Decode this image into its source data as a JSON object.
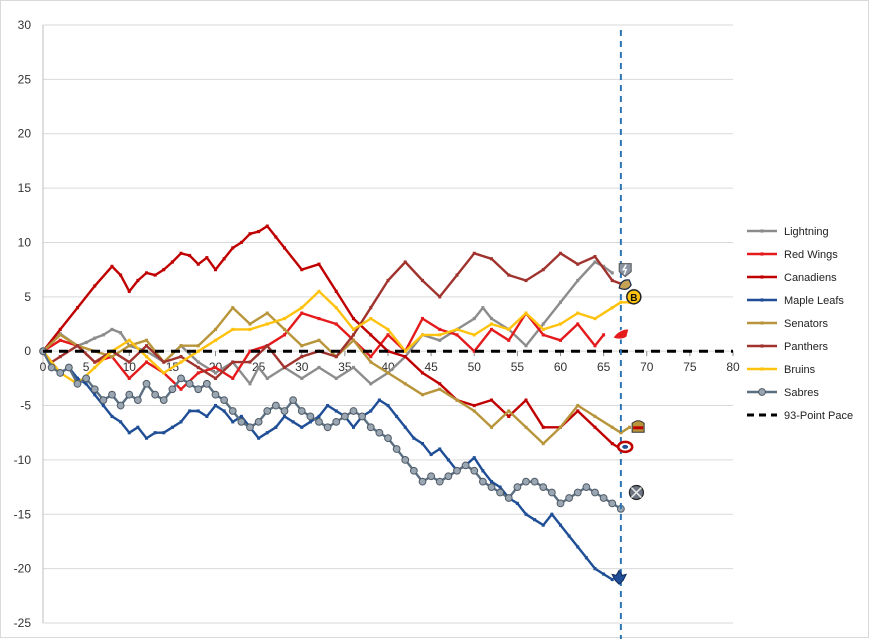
{
  "chart_data": {
    "type": "line",
    "title": "",
    "xlabel": "",
    "ylabel": "",
    "xlim": [
      0,
      80
    ],
    "ylim": [
      -25,
      30
    ],
    "xticks": [
      0,
      5,
      10,
      15,
      20,
      25,
      30,
      35,
      40,
      45,
      50,
      55,
      60,
      65,
      70,
      75,
      80
    ],
    "yticks": [
      30,
      25,
      20,
      15,
      10,
      5,
      0,
      -5,
      -10,
      -15,
      -20,
      -25
    ],
    "grid": "horizontal",
    "legend_position": "right",
    "current_game_marker_x": 67,
    "series": [
      {
        "name": "Lightning",
        "color": "#8c8c8c",
        "marker": "dash",
        "style": "solid",
        "x": [
          0,
          2,
          4,
          5,
          6,
          7,
          8,
          9,
          10,
          12,
          14,
          16,
          18,
          20,
          22,
          24,
          25,
          26,
          28,
          30,
          32,
          34,
          36,
          38,
          40,
          42,
          44,
          46,
          48,
          50,
          51,
          52,
          54,
          56,
          58,
          60,
          62,
          64,
          65,
          66
        ],
        "y": [
          0,
          1.6,
          0.5,
          0.8,
          1.2,
          1.5,
          2,
          1.7,
          0.5,
          0,
          -1,
          0.5,
          -1,
          -2,
          -1,
          -3,
          -1.5,
          -2.5,
          -1.5,
          -2.5,
          -1.5,
          -2.5,
          -1.5,
          -3,
          -2,
          -0.5,
          1.5,
          1,
          2,
          3,
          4,
          3,
          2,
          0.5,
          2.5,
          4.5,
          6.5,
          8.2,
          7.8,
          7.2
        ]
      },
      {
        "name": "Red Wings",
        "color": "#e41a1c",
        "marker": "dash",
        "style": "solid",
        "x": [
          0,
          2,
          4,
          6,
          8,
          10,
          12,
          14,
          16,
          18,
          20,
          22,
          24,
          26,
          28,
          30,
          32,
          34,
          36,
          38,
          40,
          42,
          44,
          46,
          48,
          50,
          52,
          54,
          56,
          58,
          60,
          62,
          64,
          65
        ],
        "y": [
          0,
          1,
          0.5,
          -1,
          -0.5,
          -2.5,
          -1,
          -2,
          -3.5,
          -2,
          -1.5,
          -2.5,
          0,
          0.5,
          1.5,
          3.5,
          3,
          2.5,
          1,
          -0.5,
          1.5,
          0,
          3,
          2,
          1.5,
          0,
          2,
          1,
          3.5,
          1.5,
          1,
          2.5,
          0.5,
          1.5
        ]
      },
      {
        "name": "Canadiens",
        "color": "#c00000",
        "marker": "dash",
        "style": "solid",
        "x": [
          0,
          2,
          4,
          6,
          8,
          9,
          10,
          11,
          12,
          13,
          14,
          15,
          16,
          17,
          18,
          19,
          20,
          21,
          22,
          23,
          24,
          25,
          26,
          27,
          28,
          30,
          32,
          34,
          36,
          38,
          40,
          42,
          44,
          46,
          48,
          50,
          52,
          54,
          56,
          58,
          60,
          62,
          64,
          66,
          67
        ],
        "y": [
          0,
          2,
          4,
          6,
          7.8,
          7,
          5.5,
          6.5,
          7.2,
          7,
          7.5,
          8.2,
          9,
          8.8,
          8,
          8.6,
          7.5,
          8.5,
          9.5,
          10,
          10.8,
          11,
          11.5,
          10.5,
          9.5,
          7.5,
          8,
          5.5,
          3,
          1.5,
          0,
          -0.5,
          -2,
          -3,
          -4.5,
          -5,
          -4.5,
          -6,
          -4.5,
          -7,
          -7,
          -5.5,
          -7,
          -8.5,
          -9
        ]
      },
      {
        "name": "Maple Leafs",
        "color": "#1f4e96",
        "marker": "dash",
        "style": "solid",
        "x": [
          0,
          1,
          2,
          3,
          4,
          5,
          6,
          7,
          8,
          9,
          10,
          11,
          12,
          13,
          14,
          15,
          16,
          17,
          18,
          19,
          20,
          21,
          22,
          23,
          24,
          25,
          26,
          27,
          28,
          29,
          30,
          31,
          32,
          33,
          34,
          35,
          36,
          37,
          38,
          39,
          40,
          41,
          42,
          43,
          44,
          45,
          46,
          47,
          48,
          49,
          50,
          51,
          52,
          53,
          54,
          55,
          56,
          57,
          58,
          59,
          60,
          61,
          62,
          63,
          64,
          65,
          66
        ],
        "y": [
          0,
          -1,
          -2,
          -1.5,
          -2.5,
          -3,
          -4,
          -5,
          -6,
          -6.5,
          -7.5,
          -7,
          -8,
          -7.5,
          -7.5,
          -7,
          -6.5,
          -5.5,
          -5.5,
          -6,
          -5,
          -5.5,
          -6.5,
          -6,
          -7,
          -8,
          -7.5,
          -7,
          -6,
          -6.5,
          -7,
          -6.5,
          -6,
          -5,
          -5.5,
          -6,
          -7,
          -6,
          -5.5,
          -4.5,
          -5,
          -6,
          -7,
          -8,
          -8.5,
          -9.5,
          -9,
          -10,
          -11,
          -10.5,
          -9.8,
          -11,
          -12,
          -12.5,
          -13.5,
          -14,
          -15,
          -15.5,
          -16,
          -15,
          -16,
          -17,
          -18,
          -19,
          -20,
          -20.5,
          -21
        ]
      },
      {
        "name": "Senators",
        "color": "#b8953a",
        "marker": "dash",
        "style": "solid",
        "x": [
          0,
          2,
          4,
          6,
          8,
          10,
          12,
          14,
          16,
          18,
          20,
          22,
          24,
          26,
          28,
          30,
          32,
          34,
          36,
          38,
          40,
          42,
          44,
          46,
          48,
          50,
          52,
          54,
          56,
          58,
          60,
          62,
          64,
          66,
          67,
          68
        ],
        "y": [
          0,
          1.5,
          0.5,
          0,
          -0.5,
          0.5,
          1,
          -1,
          0.5,
          0.5,
          2,
          4,
          2.5,
          3.5,
          2,
          0.5,
          1,
          -0.5,
          1,
          -1,
          -2,
          -3,
          -4,
          -3.5,
          -4.5,
          -5.5,
          -7,
          -5.5,
          -7,
          -8.5,
          -7,
          -5,
          -6,
          -7,
          -7.5,
          -7
        ]
      },
      {
        "name": "Panthers",
        "color": "#a0332e",
        "marker": "dash",
        "style": "solid",
        "x": [
          0,
          1,
          2,
          4,
          6,
          8,
          10,
          12,
          14,
          16,
          18,
          20,
          22,
          24,
          26,
          28,
          30,
          32,
          34,
          36,
          38,
          40,
          42,
          44,
          46,
          48,
          50,
          52,
          54,
          56,
          58,
          60,
          62,
          64,
          66,
          67
        ],
        "y": [
          0,
          -1,
          -0.5,
          0.5,
          -1,
          0,
          -1,
          0.5,
          -1,
          -0.5,
          -1.5,
          -2.5,
          -1,
          -1,
          0.5,
          -1.5,
          -0.5,
          0,
          -0.5,
          1.5,
          4,
          6.5,
          8.2,
          6.5,
          5,
          7,
          9,
          8.5,
          7,
          6.5,
          7.5,
          9,
          8,
          8.7,
          6.5,
          6.2
        ]
      },
      {
        "name": "Bruins",
        "color": "#ffc20e",
        "marker": "dash",
        "style": "solid",
        "x": [
          0,
          2,
          4,
          6,
          8,
          10,
          12,
          14,
          16,
          18,
          20,
          22,
          24,
          26,
          28,
          30,
          32,
          34,
          36,
          38,
          40,
          42,
          44,
          46,
          48,
          50,
          52,
          54,
          56,
          58,
          60,
          62,
          64,
          66,
          67,
          68
        ],
        "y": [
          0,
          -2,
          -3,
          -1.5,
          0,
          1,
          -0.5,
          -2,
          -1,
          0,
          1,
          2,
          2,
          2.5,
          3,
          4,
          5.5,
          4,
          2,
          3,
          2,
          0,
          1.5,
          1.5,
          2,
          1.5,
          2.5,
          2,
          3.5,
          2,
          2.5,
          3.5,
          3,
          4,
          4.5,
          4.5
        ]
      },
      {
        "name": "Sabres",
        "color": "#5b6f82",
        "marker": "ball",
        "style": "solid",
        "x": [
          0,
          1,
          2,
          3,
          4,
          5,
          6,
          7,
          8,
          9,
          10,
          11,
          12,
          13,
          14,
          15,
          16,
          17,
          18,
          19,
          20,
          21,
          22,
          23,
          24,
          25,
          26,
          27,
          28,
          29,
          30,
          31,
          32,
          33,
          34,
          35,
          36,
          37,
          38,
          39,
          40,
          41,
          42,
          43,
          44,
          45,
          46,
          47,
          48,
          49,
          50,
          51,
          52,
          53,
          54,
          55,
          56,
          57,
          58,
          59,
          60,
          61,
          62,
          63,
          64,
          65,
          66,
          67
        ],
        "y": [
          0,
          -1.5,
          -2,
          -1.5,
          -3,
          -2.5,
          -3.5,
          -4.5,
          -4,
          -5,
          -4,
          -4.5,
          -3,
          -4,
          -4.5,
          -3.5,
          -2.5,
          -3,
          -3.5,
          -3,
          -4,
          -4.5,
          -5.5,
          -6.5,
          -7,
          -6.5,
          -5.5,
          -5,
          -5.5,
          -4.5,
          -5.5,
          -6,
          -6.5,
          -7,
          -6.5,
          -6,
          -5.5,
          -6,
          -7,
          -7.5,
          -8,
          -9,
          -10,
          -11,
          -12,
          -11.5,
          -12,
          -11.5,
          -11,
          -10.5,
          -11,
          -12,
          -12.5,
          -13,
          -13.5,
          -12.5,
          -12,
          -12,
          -12.5,
          -13,
          -14,
          -13.5,
          -13,
          -12.5,
          -13,
          -13.5,
          -14,
          -14.5
        ]
      },
      {
        "name": "93-Point Pace",
        "color": "#000000",
        "marker": "none",
        "style": "dashed",
        "x": [
          0,
          80
        ],
        "y": [
          0,
          0
        ]
      }
    ]
  },
  "end_icons": [
    {
      "team": "Lightning",
      "icon": "lightning-logo-icon",
      "x": 67.5,
      "y": 7.5,
      "color": "#8c96a3"
    },
    {
      "team": "Bruins",
      "icon": "bruins-logo-icon",
      "x": 68.5,
      "y": 5,
      "color": "#ffc20e",
      "text": "B"
    },
    {
      "team": "Panthers",
      "icon": "panthers-logo-icon",
      "x": 67.5,
      "y": 6,
      "color": "#a0332e"
    },
    {
      "team": "Red Wings",
      "icon": "red-wings-logo-icon",
      "x": 67,
      "y": 1.5,
      "color": "#e41a1c"
    },
    {
      "team": "Senators",
      "icon": "senators-logo-icon",
      "x": 69,
      "y": -7,
      "color": "#b8953a"
    },
    {
      "team": "Canadiens",
      "icon": "canadiens-logo-icon",
      "x": 67.5,
      "y": -8.8,
      "color": "#c00000"
    },
    {
      "team": "Sabres",
      "icon": "sabres-logo-icon",
      "x": 68.8,
      "y": -13,
      "color": "#555a60"
    },
    {
      "team": "Maple Leafs",
      "icon": "maple-leafs-logo-icon",
      "x": 66.8,
      "y": -20.8,
      "color": "#1f4e96"
    }
  ]
}
